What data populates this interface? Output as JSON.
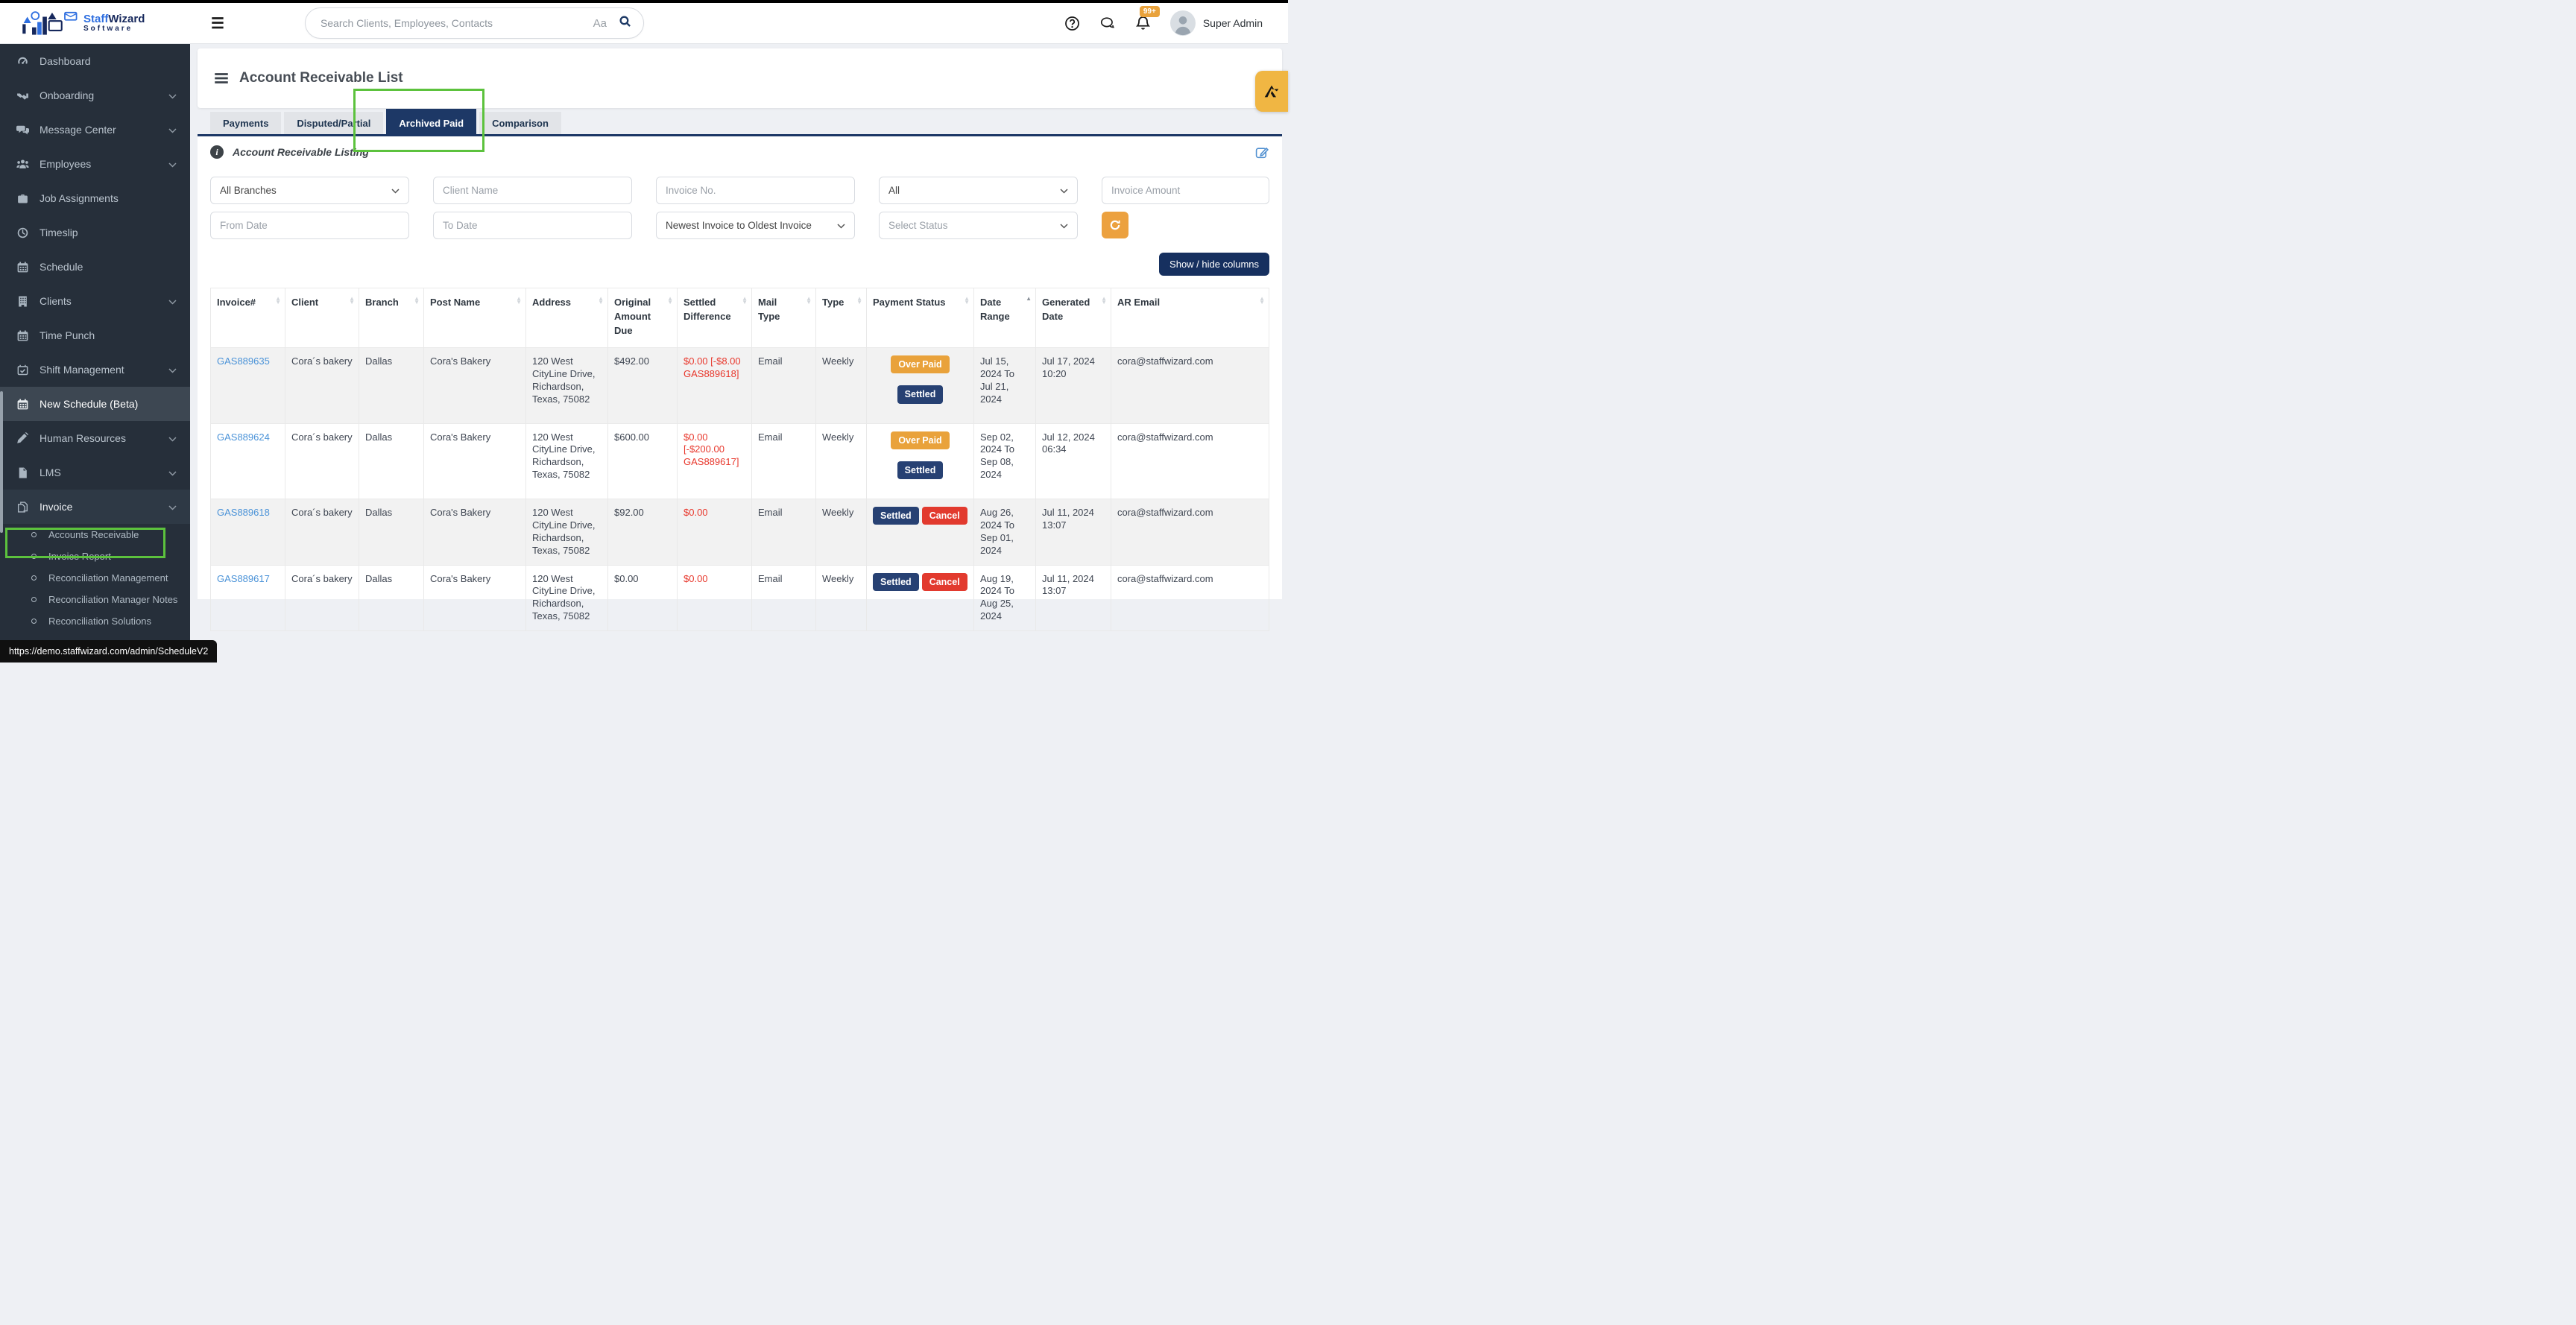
{
  "palette": {
    "navy": "#1d3866",
    "badge_navy": "#274173",
    "orange": "#e9a23b",
    "red": "#e23a2e",
    "link_blue": "#4b93d8",
    "red_text": "#e8382d",
    "annotation_green": "#5cc23d",
    "sidebar_bg": "#262f3a"
  },
  "topbar": {
    "logo": {
      "part1": "Staff",
      "part2": "Wizard",
      "part3": "Software"
    },
    "search_placeholder": "Search Clients, Employees, Contacts",
    "aa_label": "Aa",
    "notification_badge": "99+",
    "user_name": "Super Admin"
  },
  "sidebar": {
    "items": [
      {
        "label": "Dashboard",
        "icon": "gauge-icon",
        "chevron": false
      },
      {
        "label": "Onboarding",
        "icon": "handshake-icon",
        "chevron": true
      },
      {
        "label": "Message Center",
        "icon": "chat-icon",
        "chevron": true
      },
      {
        "label": "Employees",
        "icon": "users-icon",
        "chevron": true
      },
      {
        "label": "Job Assignments",
        "icon": "briefcase-icon",
        "chevron": false
      },
      {
        "label": "Timeslip",
        "icon": "clock-icon",
        "chevron": false
      },
      {
        "label": "Schedule",
        "icon": "calendar-icon",
        "chevron": false
      },
      {
        "label": "Clients",
        "icon": "building-icon",
        "chevron": true
      },
      {
        "label": "Time Punch",
        "icon": "calendar-icon",
        "chevron": false
      },
      {
        "label": "Shift Management",
        "icon": "calendar-check-icon",
        "chevron": true
      },
      {
        "label": "New Schedule (Beta)",
        "icon": "calendar-icon",
        "chevron": false,
        "active": true
      },
      {
        "label": "Human Resources",
        "icon": "pencil-icon",
        "chevron": true
      },
      {
        "label": "LMS",
        "icon": "file-icon",
        "chevron": true
      },
      {
        "label": "Invoice",
        "icon": "copy-icon",
        "chevron": true,
        "open": true
      }
    ],
    "invoice_submenu": [
      "Accounts Receivable",
      "Invoice Report",
      "Reconciliation Management",
      "Reconciliation Manager Notes",
      "Reconciliation Solutions"
    ]
  },
  "page": {
    "title": "Account Receivable List",
    "info_banner": "Account Receivable Listing"
  },
  "tabs": [
    {
      "label": "Payments",
      "active": false
    },
    {
      "label": "Disputed/Partial",
      "active": false
    },
    {
      "label": "Archived Paid",
      "active": true
    },
    {
      "label": "Comparison",
      "active": false
    }
  ],
  "filters": {
    "branches_value": "All Branches",
    "client_name_placeholder": "Client Name",
    "invoice_no_placeholder": "Invoice No.",
    "type_value": "All",
    "invoice_amount_placeholder": "Invoice Amount",
    "from_date_placeholder": "From Date",
    "to_date_placeholder": "To Date",
    "sort_value": "Newest Invoice to Oldest Invoice",
    "status_placeholder": "Select Status",
    "show_hide_label": "Show / hide columns"
  },
  "table": {
    "columns": [
      {
        "label": "Invoice#",
        "sort": "both"
      },
      {
        "label": "Client",
        "sort": "both"
      },
      {
        "label": "Branch",
        "sort": "both"
      },
      {
        "label": "Post Name",
        "sort": "both"
      },
      {
        "label": "Address",
        "sort": "both"
      },
      {
        "label": "Original Amount Due",
        "sort": "both"
      },
      {
        "label": "Settled Difference",
        "sort": "both"
      },
      {
        "label": "Mail Type",
        "sort": "both"
      },
      {
        "label": "Type",
        "sort": "both"
      },
      {
        "label": "Payment Status",
        "sort": "both"
      },
      {
        "label": "Date Range",
        "sort": "asc"
      },
      {
        "label": "Generated Date",
        "sort": "both"
      },
      {
        "label": "AR Email",
        "sort": "both"
      }
    ],
    "rows": [
      {
        "invoice": "GAS889635",
        "client": "Cora´s bakery",
        "branch": "Dallas",
        "post_name": "Cora's Bakery",
        "address": "120 West CityLine Drive, Richardson, Texas, 75082",
        "original_amount": "$492.00",
        "settled_difference": "$0.00 [-$8.00 GAS889618]",
        "mail_type": "Email",
        "type": "Weekly",
        "payment_status": {
          "layout": "stacked",
          "badges": [
            {
              "label": "Over Paid",
              "color": "orange"
            },
            {
              "label": "Settled",
              "color": "navy"
            }
          ]
        },
        "date_range": "Jul 15, 2024 To Jul 21, 2024",
        "generated_date": "Jul 17, 2024 10:20",
        "ar_email": "cora@staffwizard.com"
      },
      {
        "invoice": "GAS889624",
        "client": "Cora´s bakery",
        "branch": "Dallas",
        "post_name": "Cora's Bakery",
        "address": "120 West CityLine Drive, Richardson, Texas, 75082",
        "original_amount": "$600.00",
        "settled_difference": "$0.00 [-$200.00 GAS889617]",
        "mail_type": "Email",
        "type": "Weekly",
        "payment_status": {
          "layout": "stacked",
          "badges": [
            {
              "label": "Over Paid",
              "color": "orange"
            },
            {
              "label": "Settled",
              "color": "navy"
            }
          ]
        },
        "date_range": "Sep 02, 2024 To Sep 08, 2024",
        "generated_date": "Jul 12, 2024 06:34",
        "ar_email": "cora@staffwizard.com"
      },
      {
        "invoice": "GAS889618",
        "client": "Cora´s bakery",
        "branch": "Dallas",
        "post_name": "Cora's Bakery",
        "address": "120 West CityLine Drive, Richardson, Texas, 75082",
        "original_amount": "$92.00",
        "settled_difference": "$0.00",
        "mail_type": "Email",
        "type": "Weekly",
        "payment_status": {
          "layout": "inline",
          "badges": [
            {
              "label": "Settled",
              "color": "navy"
            },
            {
              "label": "Cancel",
              "color": "red"
            }
          ]
        },
        "date_range": "Aug 26, 2024 To Sep 01, 2024",
        "generated_date": "Jul 11, 2024 13:07",
        "ar_email": "cora@staffwizard.com"
      },
      {
        "invoice": "GAS889617",
        "client": "Cora´s bakery",
        "branch": "Dallas",
        "post_name": "Cora's Bakery",
        "address": "120 West CityLine Drive, Richardson, Texas, 75082",
        "original_amount": "$0.00",
        "settled_difference": "$0.00",
        "mail_type": "Email",
        "type": "Weekly",
        "payment_status": {
          "layout": "inline",
          "badges": [
            {
              "label": "Settled",
              "color": "navy"
            },
            {
              "label": "Cancel",
              "color": "red"
            }
          ]
        },
        "date_range": "Aug 19, 2024 To Aug 25, 2024",
        "generated_date": "Jul 11, 2024 13:07",
        "ar_email": "cora@staffwizard.com"
      }
    ]
  },
  "status_bar": {
    "url": "https://demo.staffwizard.com/admin/ScheduleV2"
  }
}
